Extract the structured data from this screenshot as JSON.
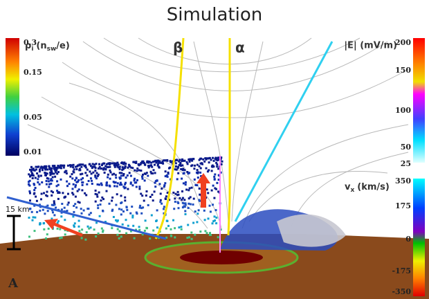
{
  "header": {
    "title": "Simulation"
  },
  "panel_label": "A",
  "scale_bar": {
    "label": "15 km"
  },
  "trajectory_labels": [
    "β",
    "α"
  ],
  "colorbars": [
    {
      "symbol": "ρ",
      "symbol_sub": "i",
      "unit_pre": "(n",
      "unit_sub": "sw",
      "unit_post": "/e)",
      "ticks": [
        "0.3",
        "0.15",
        "0.05",
        "0.01"
      ]
    },
    {
      "label": "|E| (mV/m)",
      "ticks": [
        "200",
        "150",
        "100",
        "50",
        "25"
      ]
    },
    {
      "symbol": "v",
      "symbol_sub": "x",
      "unit_pre": "(km/s)",
      "ticks": [
        "350",
        "175",
        "0",
        "-175",
        "-350"
      ]
    }
  ]
}
